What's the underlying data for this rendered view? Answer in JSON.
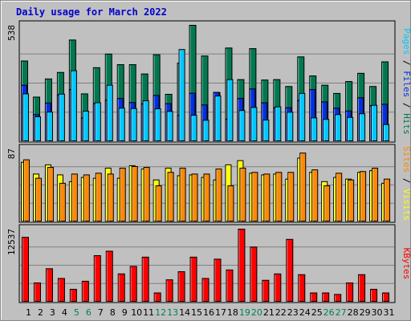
{
  "chart_data": {
    "type": "bar",
    "title": "Daily usage for March 2022",
    "days": [
      "1",
      "2",
      "3",
      "4",
      "5",
      "6",
      "7",
      "8",
      "9",
      "10",
      "11",
      "12",
      "13",
      "14",
      "15",
      "16",
      "17",
      "18",
      "19",
      "20",
      "21",
      "22",
      "23",
      "24",
      "25",
      "26",
      "27",
      "28",
      "29",
      "30",
      "31"
    ],
    "weekend_days": [
      "5",
      "6",
      "12",
      "13",
      "19",
      "20",
      "26",
      "27"
    ],
    "colors": {
      "background": "#c0c0c0",
      "frame": "#000000",
      "hits": "#007850",
      "files": "#0030e0",
      "pages": "#00c8ff",
      "visits": "#ffff00",
      "sites": "#ff8800",
      "kbytes": "#ff0000",
      "title": "#0000cc",
      "weekday_label": "#000000",
      "weekend_label": "#00805c"
    },
    "panels": [
      {
        "id": "hits",
        "max_label": "538",
        "ymax": 538,
        "legend": [
          {
            "text": "Pages",
            "color": "#00c8ff"
          },
          {
            "text": " / ",
            "color": "#000000"
          },
          {
            "text": "Files",
            "color": "#0030e0"
          },
          {
            "text": " / ",
            "color": "#000000"
          },
          {
            "text": "Hits",
            "color": "#007850"
          }
        ],
        "series": [
          {
            "name": "Hits",
            "color": "#007850",
            "values": [
              373,
              206,
              290,
              320,
              470,
              221,
              342,
              405,
              356,
              356,
              313,
              402,
              219,
              363,
              538,
              396,
              227,
              433,
              287,
              430,
              285,
              287,
              255,
              392,
              304,
              261,
              223,
              278,
              316,
              255,
              369
            ]
          },
          {
            "name": "Files",
            "color": "#0030e0",
            "values": [
              261,
              125,
              179,
              217,
              241,
              110,
              176,
              192,
              200,
              181,
              175,
              214,
              176,
              122,
              224,
              170,
              228,
              104,
              200,
              244,
              180,
              157,
              157,
              191,
              241,
              184,
              155,
              142,
              203,
              167,
              173
            ]
          },
          {
            "name": "Pages",
            "color": "#00c8ff",
            "values": [
              221,
              115,
              137,
              220,
              328,
              141,
              180,
              261,
              155,
              153,
              189,
              152,
              140,
              426,
              122,
              99,
              211,
              287,
              144,
              158,
              100,
              161,
              136,
              223,
              110,
              103,
              125,
              112,
              129,
              168,
              79
            ]
          }
        ]
      },
      {
        "id": "visits",
        "max_label": "87",
        "ymax": 87,
        "legend": [
          {
            "text": "Sites",
            "color": "#ff8800"
          },
          {
            "text": " / ",
            "color": "#000000"
          },
          {
            "text": "Visits",
            "color": "#ffff00"
          }
        ],
        "series": [
          {
            "name": "Visits",
            "color": "#ffff00",
            "values": [
              71,
              57,
              68,
              56,
              48,
              53,
              52,
              64,
              52,
              67,
              63,
              50,
              64,
              55,
              56,
              53,
              50,
              68,
              73,
              58,
              56,
              57,
              51,
              76,
              59,
              48,
              53,
              51,
              59,
              61,
              46
            ]
          },
          {
            "name": "Sites",
            "color": "#ff8800",
            "values": [
              74,
              52,
              65,
              46,
              57,
              56,
              58,
              57,
              64,
              66,
              65,
              43,
              59,
              64,
              57,
              57,
              63,
              43,
              64,
              59,
              57,
              59,
              59,
              82,
              62,
              43,
              58,
              50,
              60,
              64,
              51
            ]
          }
        ]
      },
      {
        "id": "kbytes",
        "max_label": "12537",
        "ymax": 12537,
        "legend": [
          {
            "text": "KBytes",
            "color": "#ff0000"
          }
        ],
        "series": [
          {
            "name": "KBytes",
            "color": "#ff0000",
            "values": [
              11133,
              3300,
              5737,
              4066,
              2209,
              3591,
              7985,
              8748,
              4852,
              6136,
              7728,
              1584,
              3837,
              5228,
              7728,
              4066,
              7379,
              5526,
              12537,
              9461,
              3751,
              4851,
              10779,
              4718,
              1584,
              1584,
              1325,
              3300,
              4718,
              2208,
              1584
            ]
          }
        ]
      }
    ]
  }
}
